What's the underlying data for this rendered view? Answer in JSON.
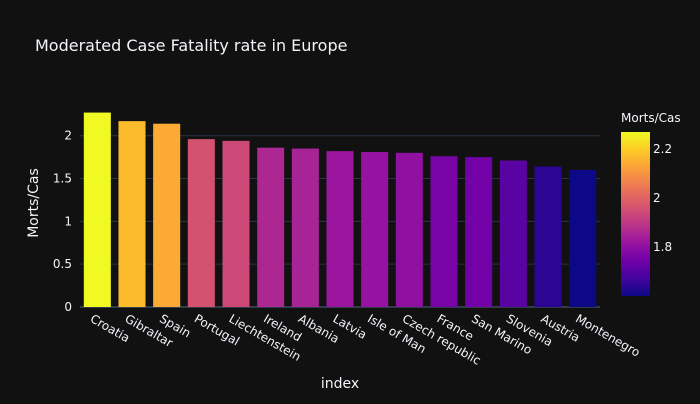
{
  "chart_data": {
    "type": "bar",
    "title": "Moderated Case Fatality rate in Europe",
    "xlabel": "index",
    "ylabel": "Morts/Cas",
    "categories": [
      "Croatia",
      "Gibraltar",
      "Spain",
      "Portugal",
      "Liechtenstein",
      "Ireland",
      "Albania",
      "Latvia",
      "Isle of Man",
      "Czech republic",
      "France",
      "San Marino",
      "Slovenia",
      "Austria",
      "Montenegro"
    ],
    "values": [
      2.27,
      2.17,
      2.14,
      1.96,
      1.94,
      1.86,
      1.85,
      1.82,
      1.81,
      1.8,
      1.76,
      1.75,
      1.71,
      1.64,
      1.6
    ],
    "ylim": [
      0,
      2.37
    ],
    "yticks": [
      "0",
      "0.5",
      "1",
      "1.5",
      "2"
    ],
    "grid": true,
    "colorscale": "plasma",
    "colorbar": {
      "title": "Morts/Cas",
      "range": [
        1.6,
        2.27
      ],
      "ticks": [
        "1.8",
        "2",
        "2.2"
      ]
    },
    "colors": {
      "background": "#111111",
      "grid": "#283442",
      "text": "#f2f5fa"
    }
  }
}
